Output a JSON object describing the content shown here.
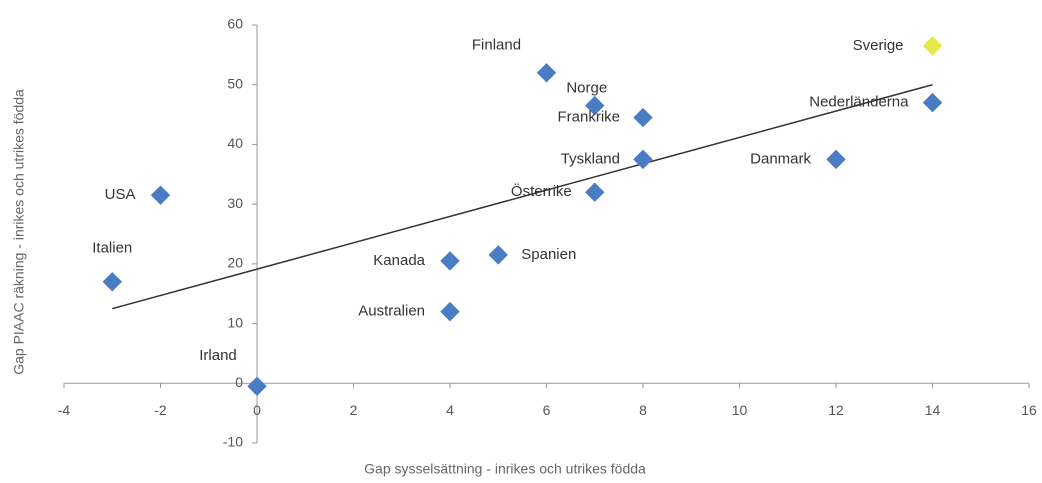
{
  "chart_data": {
    "type": "scatter",
    "x_label": "Gap sysselsättning - inrikes och utrikes födda",
    "y_label": "Gap PIAAC räkning - inrikes och utrikes födda",
    "labels": [
      "Italien",
      "USA",
      "Irland",
      "Australien",
      "Kanada",
      "Spanien",
      "Österrike",
      "Finland",
      "Norge",
      "Frankrike",
      "Tyskland",
      "Danmark",
      "Nederländerna",
      "Sverige"
    ],
    "x": [
      -3,
      -2,
      0,
      4,
      4,
      5,
      7,
      6,
      7,
      8,
      8,
      12,
      14,
      14
    ],
    "y": [
      17,
      31.5,
      -0.5,
      12,
      20.5,
      21.5,
      32,
      52,
      46.5,
      44.5,
      37.5,
      37.5,
      47,
      56.5
    ],
    "point_colors": [
      "#4a7cc4",
      "#4a7cc4",
      "#4a7cc4",
      "#4a7cc4",
      "#4a7cc4",
      "#4a7cc4",
      "#4a7cc4",
      "#4a7cc4",
      "#4a7cc4",
      "#4a7cc4",
      "#4a7cc4",
      "#4a7cc4",
      "#4a7cc4",
      "#e6e84a"
    ],
    "trendline": {
      "x": [
        -3,
        14
      ],
      "y": [
        12.5,
        50
      ],
      "color": "#333333"
    },
    "xlim": [
      -4,
      16
    ],
    "ylim": [
      -10,
      60
    ],
    "xticks": [
      -4,
      -2,
      0,
      2,
      4,
      6,
      8,
      10,
      12,
      14,
      16
    ],
    "yticks": [
      -10,
      0,
      10,
      20,
      30,
      40,
      50,
      60
    ]
  }
}
